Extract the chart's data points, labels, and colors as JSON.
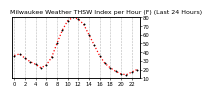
{
  "title": "Milwaukee Weather THSW Index per Hour (F) (Last 24 Hours)",
  "hours": [
    0,
    1,
    2,
    3,
    4,
    5,
    6,
    7,
    8,
    9,
    10,
    11,
    12,
    13,
    14,
    15,
    16,
    17,
    18,
    19,
    20,
    21,
    22,
    23
  ],
  "values": [
    36,
    38,
    33,
    29,
    26,
    22,
    25,
    34,
    50,
    65,
    76,
    80,
    78,
    72,
    60,
    48,
    36,
    27,
    22,
    18,
    15,
    14,
    17,
    20
  ],
  "ylim": [
    10,
    80
  ],
  "yticks": [
    10,
    20,
    30,
    40,
    50,
    60,
    70,
    80
  ],
  "ytick_labels": [
    "10",
    "20",
    "30",
    "40",
    "50",
    "60",
    "70",
    "80"
  ],
  "line_color": "#ff0000",
  "marker_color": "#000000",
  "bg_color": "#ffffff",
  "plot_bg": "#ffffff",
  "grid_color": "#999999",
  "title_fontsize": 4.5,
  "tick_fontsize": 3.8
}
